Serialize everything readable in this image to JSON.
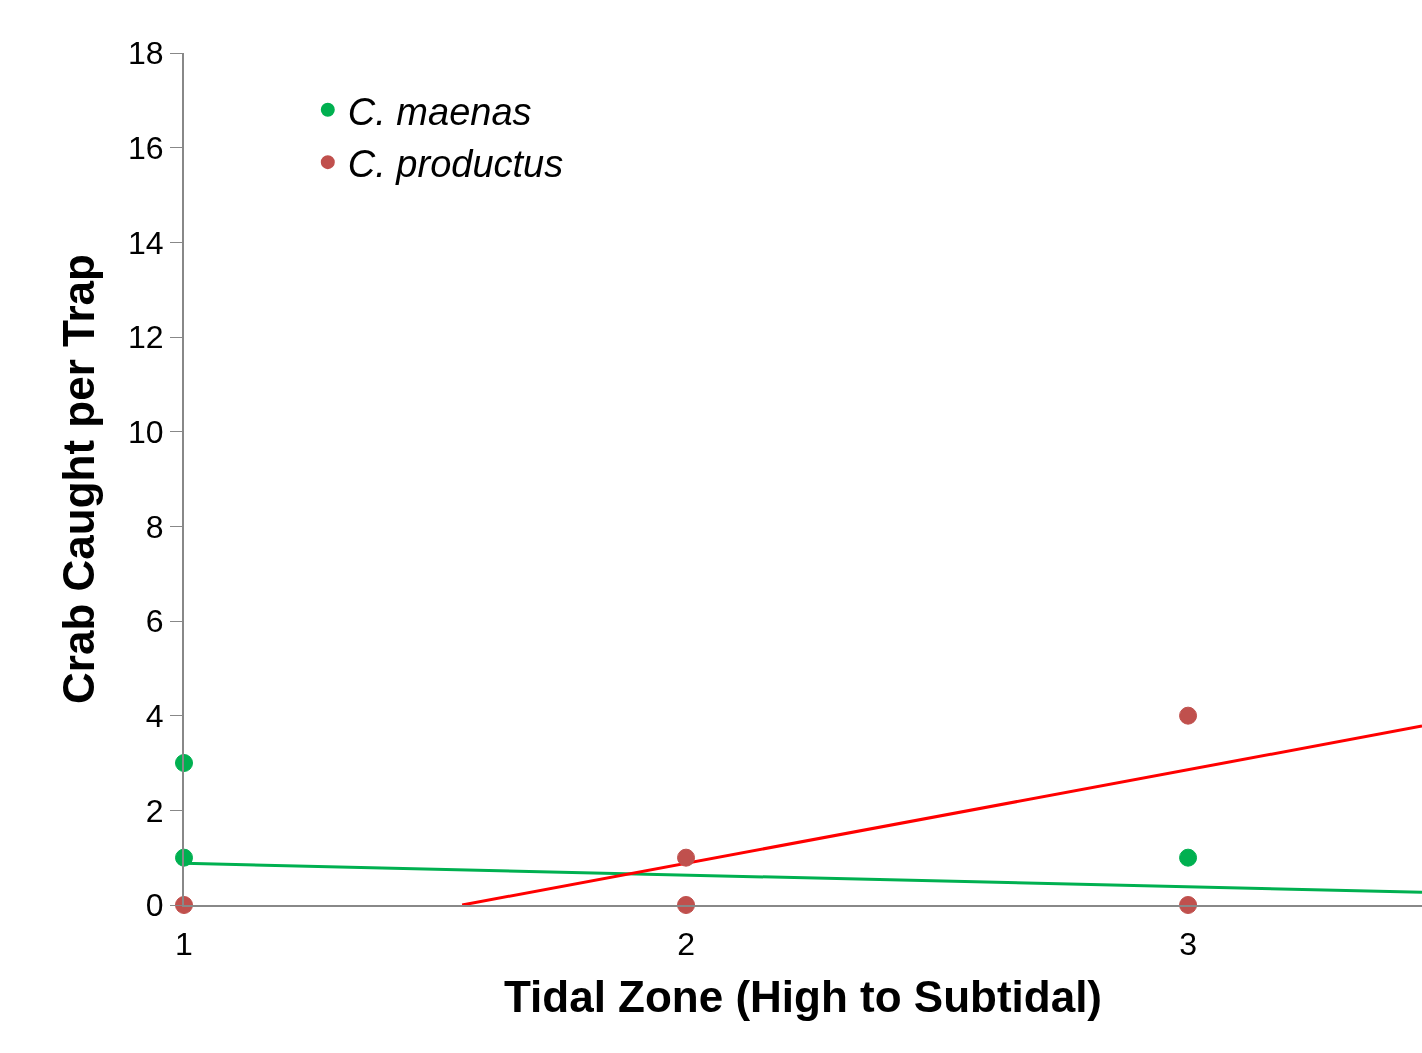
{
  "chart_data": {
    "type": "scatter",
    "xlabel": "Tidal Zone (High to Subtidal)",
    "ylabel": "Crab Caught per Trap",
    "xlim": [
      1,
      3.466
    ],
    "xticks": [
      1,
      2,
      3
    ],
    "ylim": [
      0,
      18
    ],
    "yticks": [
      0,
      2,
      4,
      6,
      8,
      10,
      12,
      14,
      16,
      18
    ],
    "legend": "top left",
    "series": [
      {
        "name": "C. maenas",
        "color": "#00b050",
        "marker": "circle",
        "x": [
          1,
          1,
          3
        ],
        "values": [
          3,
          1,
          1
        ]
      },
      {
        "name": "C. productus",
        "color": "#c0504d",
        "marker": "circle",
        "x": [
          1,
          2,
          2,
          3,
          3
        ],
        "values": [
          0,
          1,
          0,
          4,
          0
        ]
      },
      {
        "type": "line",
        "color": "#00b050",
        "x": [
          1,
          3.466
        ],
        "values": [
          0.88,
          0.27
        ]
      },
      {
        "type": "line",
        "color": "#ff0000",
        "x": [
          1.554,
          3.466
        ],
        "values": [
          0,
          3.78
        ]
      }
    ]
  }
}
